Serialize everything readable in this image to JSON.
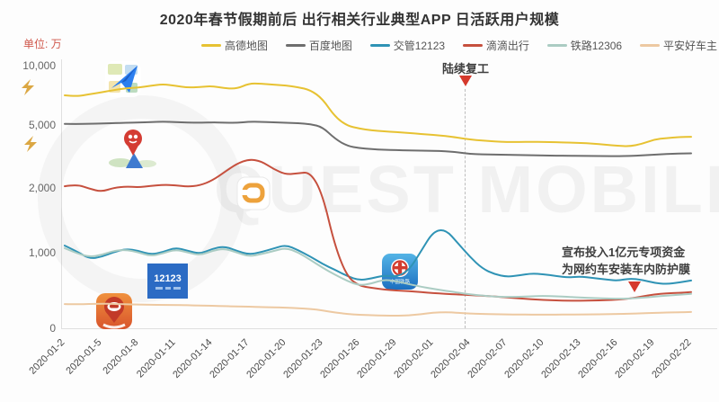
{
  "title": "2020年春节假期前后 出行相关行业典型APP 日活跃用户规模",
  "unit_label": "单位: 万",
  "watermark": "QUEST MOBILE",
  "annotations": {
    "resume_work": {
      "text": "陆续复工",
      "date": "2020-02-04"
    },
    "didi_fund": {
      "line1": "宣布投入1亿元专项资金",
      "line2": "为网约车安装车内防护膜",
      "date": "2020-02-17"
    }
  },
  "icons": {
    "jiaoguan_12123": {
      "text": "12123"
    },
    "railway_12306": {
      "caption": "中国铁路"
    }
  },
  "chart_data": {
    "type": "line",
    "title": "2020年春节假期前后 出行相关行业典型APP 日活跃用户规模",
    "xlabel": "",
    "ylabel": "单位: 万",
    "ylim": [
      0,
      10000
    ],
    "grid": false,
    "legend_position": "top",
    "yticks": [
      {
        "label": "10,000",
        "value": 10000
      },
      {
        "label": "5,000",
        "value": 5000
      },
      {
        "label": "2,000",
        "value": 2000
      },
      {
        "label": "1,000",
        "value": 1000
      },
      {
        "label": "0",
        "value": 0
      }
    ],
    "x_tick_labels": [
      "2020-01-2",
      "2020-01-5",
      "2020-01-8",
      "2020-01-11",
      "2020-01-14",
      "2020-01-17",
      "2020-01-20",
      "2020-01-23",
      "2020-01-26",
      "2020-01-29",
      "2020-02-01",
      "2020-02-04",
      "2020-02-07",
      "2020-02-10",
      "2020-02-13",
      "2020-02-16",
      "2020-02-19",
      "2020-02-22"
    ],
    "x": [
      "2020-01-02",
      "2020-01-03",
      "2020-01-04",
      "2020-01-05",
      "2020-01-06",
      "2020-01-07",
      "2020-01-08",
      "2020-01-09",
      "2020-01-10",
      "2020-01-11",
      "2020-01-12",
      "2020-01-13",
      "2020-01-14",
      "2020-01-15",
      "2020-01-16",
      "2020-01-17",
      "2020-01-18",
      "2020-01-19",
      "2020-01-20",
      "2020-01-21",
      "2020-01-22",
      "2020-01-23",
      "2020-01-24",
      "2020-01-25",
      "2020-01-26",
      "2020-01-27",
      "2020-01-28",
      "2020-01-29",
      "2020-01-30",
      "2020-01-31",
      "2020-02-01",
      "2020-02-02",
      "2020-02-03",
      "2020-02-04",
      "2020-02-05",
      "2020-02-06",
      "2020-02-07",
      "2020-02-08",
      "2020-02-09",
      "2020-02-10",
      "2020-02-11",
      "2020-02-12",
      "2020-02-13",
      "2020-02-14",
      "2020-02-15",
      "2020-02-16",
      "2020-02-17",
      "2020-02-18",
      "2020-02-19",
      "2020-02-20",
      "2020-02-21",
      "2020-02-22"
    ],
    "series": [
      {
        "key": "amap",
        "name": "高德地图",
        "color": "#e7c232",
        "values": [
          7500,
          7400,
          7600,
          7750,
          7950,
          8100,
          8150,
          8300,
          8450,
          8300,
          8150,
          8200,
          8280,
          8100,
          8050,
          8500,
          8480,
          8400,
          8330,
          8180,
          7950,
          7200,
          5700,
          4960,
          4830,
          4740,
          4700,
          4660,
          4620,
          4570,
          4530,
          4480,
          4400,
          4310,
          4260,
          4220,
          4190,
          4190,
          4200,
          4190,
          4180,
          4160,
          4150,
          4110,
          4060,
          4010,
          3980,
          4100,
          4310,
          4380,
          4420,
          4440
        ]
      },
      {
        "key": "baidu-map",
        "name": "百度地图",
        "color": "#6e6e6e",
        "values": [
          5090,
          5080,
          5100,
          5130,
          5160,
          5190,
          5210,
          5250,
          5280,
          5250,
          5200,
          5190,
          5220,
          5200,
          5180,
          5280,
          5260,
          5230,
          5180,
          5150,
          5080,
          4900,
          4350,
          4000,
          3900,
          3850,
          3820,
          3800,
          3790,
          3780,
          3770,
          3750,
          3700,
          3620,
          3600,
          3590,
          3580,
          3570,
          3560,
          3545,
          3540,
          3535,
          3530,
          3525,
          3520,
          3515,
          3525,
          3550,
          3590,
          3620,
          3640,
          3650
        ]
      },
      {
        "key": "jiaoguan-12123",
        "name": "交管12123",
        "color": "#2f93b5",
        "values": [
          1110,
          1020,
          920,
          944,
          1010,
          1060,
          1030,
          975,
          1010,
          1080,
          1030,
          985,
          1060,
          1100,
          1030,
          975,
          1010,
          1065,
          1120,
          1040,
          950,
          850,
          775,
          690,
          635,
          660,
          700,
          680,
          760,
          1020,
          1330,
          1360,
          1150,
          944,
          790,
          715,
          680,
          700,
          726,
          714,
          692,
          672,
          684,
          665,
          648,
          628,
          660,
          640,
          600,
          585,
          605,
          632
        ]
      },
      {
        "key": "didi",
        "name": "滴滴出行",
        "color": "#c6503e",
        "values": [
          2080,
          2170,
          1990,
          1940,
          2010,
          2070,
          2030,
          2100,
          2150,
          2130,
          2060,
          2120,
          2350,
          2750,
          3150,
          3370,
          3280,
          2900,
          2640,
          2700,
          2760,
          1900,
          1100,
          680,
          560,
          535,
          512,
          500,
          490,
          478,
          466,
          455,
          448,
          440,
          430,
          420,
          408,
          396,
          385,
          375,
          369,
          365,
          364,
          367,
          371,
          378,
          393,
          420,
          448,
          462,
          470,
          478
        ]
      },
      {
        "key": "railway-12306",
        "name": "铁路12306",
        "color": "#abccc3",
        "values": [
          1070,
          990,
          945,
          970,
          1030,
          1045,
          1005,
          955,
          990,
          1050,
          1005,
          965,
          1030,
          1065,
          1005,
          950,
          982,
          1025,
          1075,
          1005,
          905,
          800,
          710,
          625,
          565,
          592,
          645,
          622,
          585,
          550,
          522,
          496,
          472,
          448,
          432,
          420,
          414,
          417,
          424,
          428,
          423,
          414,
          407,
          400,
          395,
          390,
          394,
          404,
          418,
          433,
          444,
          455
        ]
      },
      {
        "key": "pingan-auto",
        "name": "平安好车主",
        "color": "#edc9a2",
        "values": [
          320,
          317,
          321,
          325,
          322,
          318,
          314,
          311,
          309,
          307,
          304,
          300,
          297,
          293,
          289,
          285,
          281,
          277,
          273,
          266,
          256,
          236,
          208,
          189,
          178,
          171,
          167,
          166,
          170,
          186,
          206,
          214,
          204,
          195,
          189,
          185,
          183,
          181,
          180,
          180,
          180,
          181,
          182,
          184,
          186,
          189,
          193,
          198,
          204,
          208,
          212,
          215
        ]
      }
    ]
  }
}
